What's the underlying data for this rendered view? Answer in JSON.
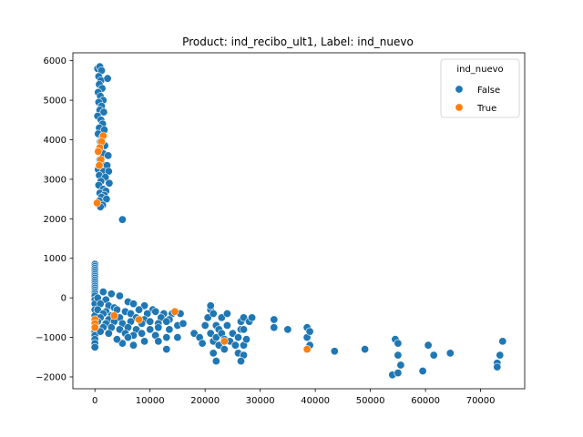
{
  "chart_data": {
    "type": "scatter",
    "title": "Product: ind_recibo_ult1, Label: ind_nuevo",
    "xlabel": "",
    "ylabel": "",
    "xlim": [
      -4000,
      78000
    ],
    "ylim": [
      -2300,
      6200
    ],
    "xticks": [
      0,
      10000,
      20000,
      30000,
      40000,
      50000,
      60000,
      70000
    ],
    "yticks": [
      -2000,
      -1000,
      0,
      1000,
      2000,
      3000,
      4000,
      5000,
      6000
    ],
    "grid": false,
    "legend": {
      "title": "ind_nuevo",
      "placement": "top-right"
    },
    "series": [
      {
        "name": "False",
        "color": "#1f77b4",
        "points": [
          [
            500,
            5800
          ],
          [
            900,
            5850
          ],
          [
            1200,
            5750
          ],
          [
            700,
            5600
          ],
          [
            1100,
            5500
          ],
          [
            2300,
            5550
          ],
          [
            800,
            5400
          ],
          [
            1300,
            5300
          ],
          [
            600,
            5200
          ],
          [
            1000,
            5100
          ],
          [
            1500,
            5000
          ],
          [
            700,
            4950
          ],
          [
            1200,
            4850
          ],
          [
            900,
            4750
          ],
          [
            1600,
            4700
          ],
          [
            500,
            4600
          ],
          [
            1100,
            4500
          ],
          [
            1400,
            4400
          ],
          [
            800,
            4300
          ],
          [
            1700,
            4250
          ],
          [
            600,
            4150
          ],
          [
            1300,
            4050
          ],
          [
            1000,
            3950
          ],
          [
            1800,
            3850
          ],
          [
            700,
            3750
          ],
          [
            1500,
            3650
          ],
          [
            2400,
            3600
          ],
          [
            900,
            3500
          ],
          [
            1200,
            3400
          ],
          [
            2200,
            3350
          ],
          [
            600,
            3250
          ],
          [
            1600,
            3200
          ],
          [
            2500,
            3200
          ],
          [
            800,
            3100
          ],
          [
            1900,
            3050
          ],
          [
            1100,
            2950
          ],
          [
            2600,
            2900
          ],
          [
            700,
            2850
          ],
          [
            1500,
            2750
          ],
          [
            2000,
            2700
          ],
          [
            900,
            2650
          ],
          [
            1700,
            2600
          ],
          [
            1200,
            2550
          ],
          [
            2100,
            2500
          ],
          [
            800,
            2450
          ],
          [
            1400,
            2350
          ],
          [
            1000,
            2300
          ],
          [
            5000,
            1980
          ],
          [
            0,
            850
          ],
          [
            0,
            800
          ],
          [
            0,
            750
          ],
          [
            0,
            700
          ],
          [
            0,
            650
          ],
          [
            0,
            600
          ],
          [
            0,
            550
          ],
          [
            0,
            500
          ],
          [
            0,
            450
          ],
          [
            0,
            400
          ],
          [
            0,
            350
          ],
          [
            0,
            300
          ],
          [
            0,
            250
          ],
          [
            0,
            200
          ],
          [
            0,
            150
          ],
          [
            0,
            100
          ],
          [
            0,
            50
          ],
          [
            0,
            -50
          ],
          [
            0,
            -150
          ],
          [
            0,
            -300
          ],
          [
            0,
            -450
          ],
          [
            0,
            -600
          ],
          [
            0,
            -750
          ],
          [
            0,
            -850
          ],
          [
            0,
            -950
          ],
          [
            0,
            -1050
          ],
          [
            0,
            -1150
          ],
          [
            0,
            -1250
          ],
          [
            1500,
            150
          ],
          [
            3000,
            100
          ],
          [
            4500,
            50
          ],
          [
            500,
            0
          ],
          [
            2000,
            -50
          ],
          [
            6000,
            -100
          ],
          [
            1000,
            -150
          ],
          [
            2500,
            -200
          ],
          [
            7000,
            -150
          ],
          [
            3500,
            -250
          ],
          [
            9000,
            -200
          ],
          [
            500,
            -300
          ],
          [
            2000,
            -350
          ],
          [
            4000,
            -300
          ],
          [
            5500,
            -350
          ],
          [
            8000,
            -300
          ],
          [
            10500,
            -300
          ],
          [
            1500,
            -400
          ],
          [
            3000,
            -450
          ],
          [
            6500,
            -400
          ],
          [
            9500,
            -400
          ],
          [
            11000,
            -350
          ],
          [
            12500,
            -400
          ],
          [
            14000,
            -400
          ],
          [
            1000,
            -500
          ],
          [
            2500,
            -550
          ],
          [
            4500,
            -500
          ],
          [
            7500,
            -500
          ],
          [
            9000,
            -550
          ],
          [
            12000,
            -500
          ],
          [
            13500,
            -550
          ],
          [
            15500,
            -400
          ],
          [
            500,
            -600
          ],
          [
            2000,
            -650
          ],
          [
            3500,
            -600
          ],
          [
            5000,
            -650
          ],
          [
            6500,
            -600
          ],
          [
            8500,
            -650
          ],
          [
            10000,
            -600
          ],
          [
            11500,
            -650
          ],
          [
            13000,
            -600
          ],
          [
            15000,
            -700
          ],
          [
            16000,
            -650
          ],
          [
            1500,
            -750
          ],
          [
            3000,
            -750
          ],
          [
            4500,
            -800
          ],
          [
            6000,
            -750
          ],
          [
            7500,
            -800
          ],
          [
            10000,
            -800
          ],
          [
            11500,
            -750
          ],
          [
            13500,
            -800
          ],
          [
            1000,
            -850
          ],
          [
            2500,
            -900
          ],
          [
            5500,
            -900
          ],
          [
            7000,
            -950
          ],
          [
            8500,
            -900
          ],
          [
            11000,
            -950
          ],
          [
            13000,
            -1000
          ],
          [
            15000,
            -1000
          ],
          [
            5000,
            -1150
          ],
          [
            7000,
            -1200
          ],
          [
            9000,
            -1100
          ],
          [
            11500,
            -1100
          ],
          [
            13000,
            -1300
          ],
          [
            4000,
            -1050
          ],
          [
            6000,
            -1000
          ],
          [
            18000,
            -900
          ],
          [
            19000,
            -1000
          ],
          [
            19500,
            -1150
          ],
          [
            20000,
            -700
          ],
          [
            20500,
            -500
          ],
          [
            21000,
            -300
          ],
          [
            21000,
            -200
          ],
          [
            21500,
            -400
          ],
          [
            21000,
            -900
          ],
          [
            21500,
            -1100
          ],
          [
            21500,
            -1400
          ],
          [
            22000,
            -700
          ],
          [
            22000,
            -1000
          ],
          [
            22000,
            -1600
          ],
          [
            22500,
            -800
          ],
          [
            22500,
            -1200
          ],
          [
            23000,
            -500
          ],
          [
            23000,
            -900
          ],
          [
            23500,
            -1300
          ],
          [
            23500,
            -1050
          ],
          [
            24000,
            -700
          ],
          [
            24000,
            -400
          ],
          [
            24500,
            -1100
          ],
          [
            25000,
            -900
          ],
          [
            25500,
            -1200
          ],
          [
            26000,
            -1000
          ],
          [
            26000,
            -1400
          ],
          [
            26500,
            -800
          ],
          [
            26500,
            -600
          ],
          [
            27000,
            -500
          ],
          [
            27000,
            -1200
          ],
          [
            27000,
            -1450
          ],
          [
            26500,
            -1600
          ],
          [
            27500,
            -1050
          ],
          [
            27000,
            -800
          ],
          [
            28000,
            -600
          ],
          [
            28500,
            -500
          ],
          [
            32500,
            -550
          ],
          [
            32500,
            -750
          ],
          [
            35000,
            -800
          ],
          [
            38500,
            -750
          ],
          [
            38500,
            -1000
          ],
          [
            39000,
            -1200
          ],
          [
            39000,
            -850
          ],
          [
            43500,
            -1350
          ],
          [
            49000,
            -1300
          ],
          [
            54000,
            -1950
          ],
          [
            54500,
            -1050
          ],
          [
            55000,
            -1150
          ],
          [
            55000,
            -1450
          ],
          [
            55500,
            -1700
          ],
          [
            55000,
            -1900
          ],
          [
            59500,
            -1850
          ],
          [
            60500,
            -1200
          ],
          [
            61500,
            -1450
          ],
          [
            64500,
            -1400
          ],
          [
            73000,
            -1650
          ],
          [
            73000,
            -1750
          ],
          [
            73500,
            -1450
          ],
          [
            74000,
            -1100
          ]
        ]
      },
      {
        "name": "True",
        "color": "#ff7f0e",
        "points": [
          [
            1500,
            4100
          ],
          [
            1200,
            3950
          ],
          [
            900,
            3800
          ],
          [
            1100,
            3500
          ],
          [
            800,
            3350
          ],
          [
            600,
            3700
          ],
          [
            400,
            2400
          ],
          [
            0,
            -550
          ],
          [
            0,
            -650
          ],
          [
            0,
            -750
          ],
          [
            3500,
            -450
          ],
          [
            8000,
            -550
          ],
          [
            14500,
            -350
          ],
          [
            23500,
            -1100
          ],
          [
            38500,
            -1300
          ]
        ]
      }
    ]
  }
}
